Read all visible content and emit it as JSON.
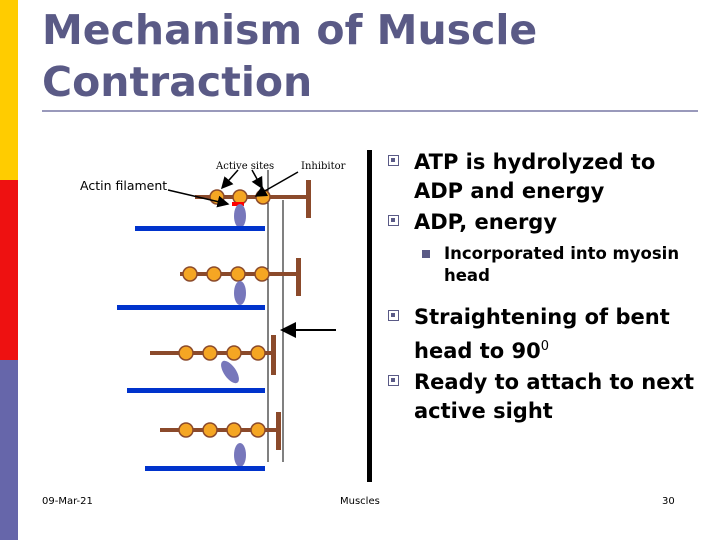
{
  "slide": {
    "title": "Mechanism of Muscle Contraction",
    "colors": {
      "accent_bar": [
        "#ffcc00",
        "#ff0000",
        "#6666aa"
      ],
      "title": "#5a5a86",
      "actin": "#0033cc",
      "troponin_bead": "#f5a623",
      "tropomyosin": "#8b4a2b",
      "myosin_head": "#7777bb"
    }
  },
  "diagram": {
    "label_active_sites": "Active sites",
    "label_inhibitor": "Inhibitor",
    "label_actin_filament": "Actin filament"
  },
  "bullets": [
    {
      "level": 1,
      "text": "ATP is hydrolyzed to ADP and energy"
    },
    {
      "level": 1,
      "text": "ADP, energy"
    },
    {
      "level": 2,
      "text": "Incorporated into myosin head"
    },
    {
      "level": 1,
      "text": "Straightening of bent head to 90",
      "superscript": "0"
    },
    {
      "level": 1,
      "text": "Ready to attach to next active sight"
    }
  ],
  "footer": {
    "date": "09-Mar-21",
    "center": "Muscles",
    "page": "30"
  }
}
